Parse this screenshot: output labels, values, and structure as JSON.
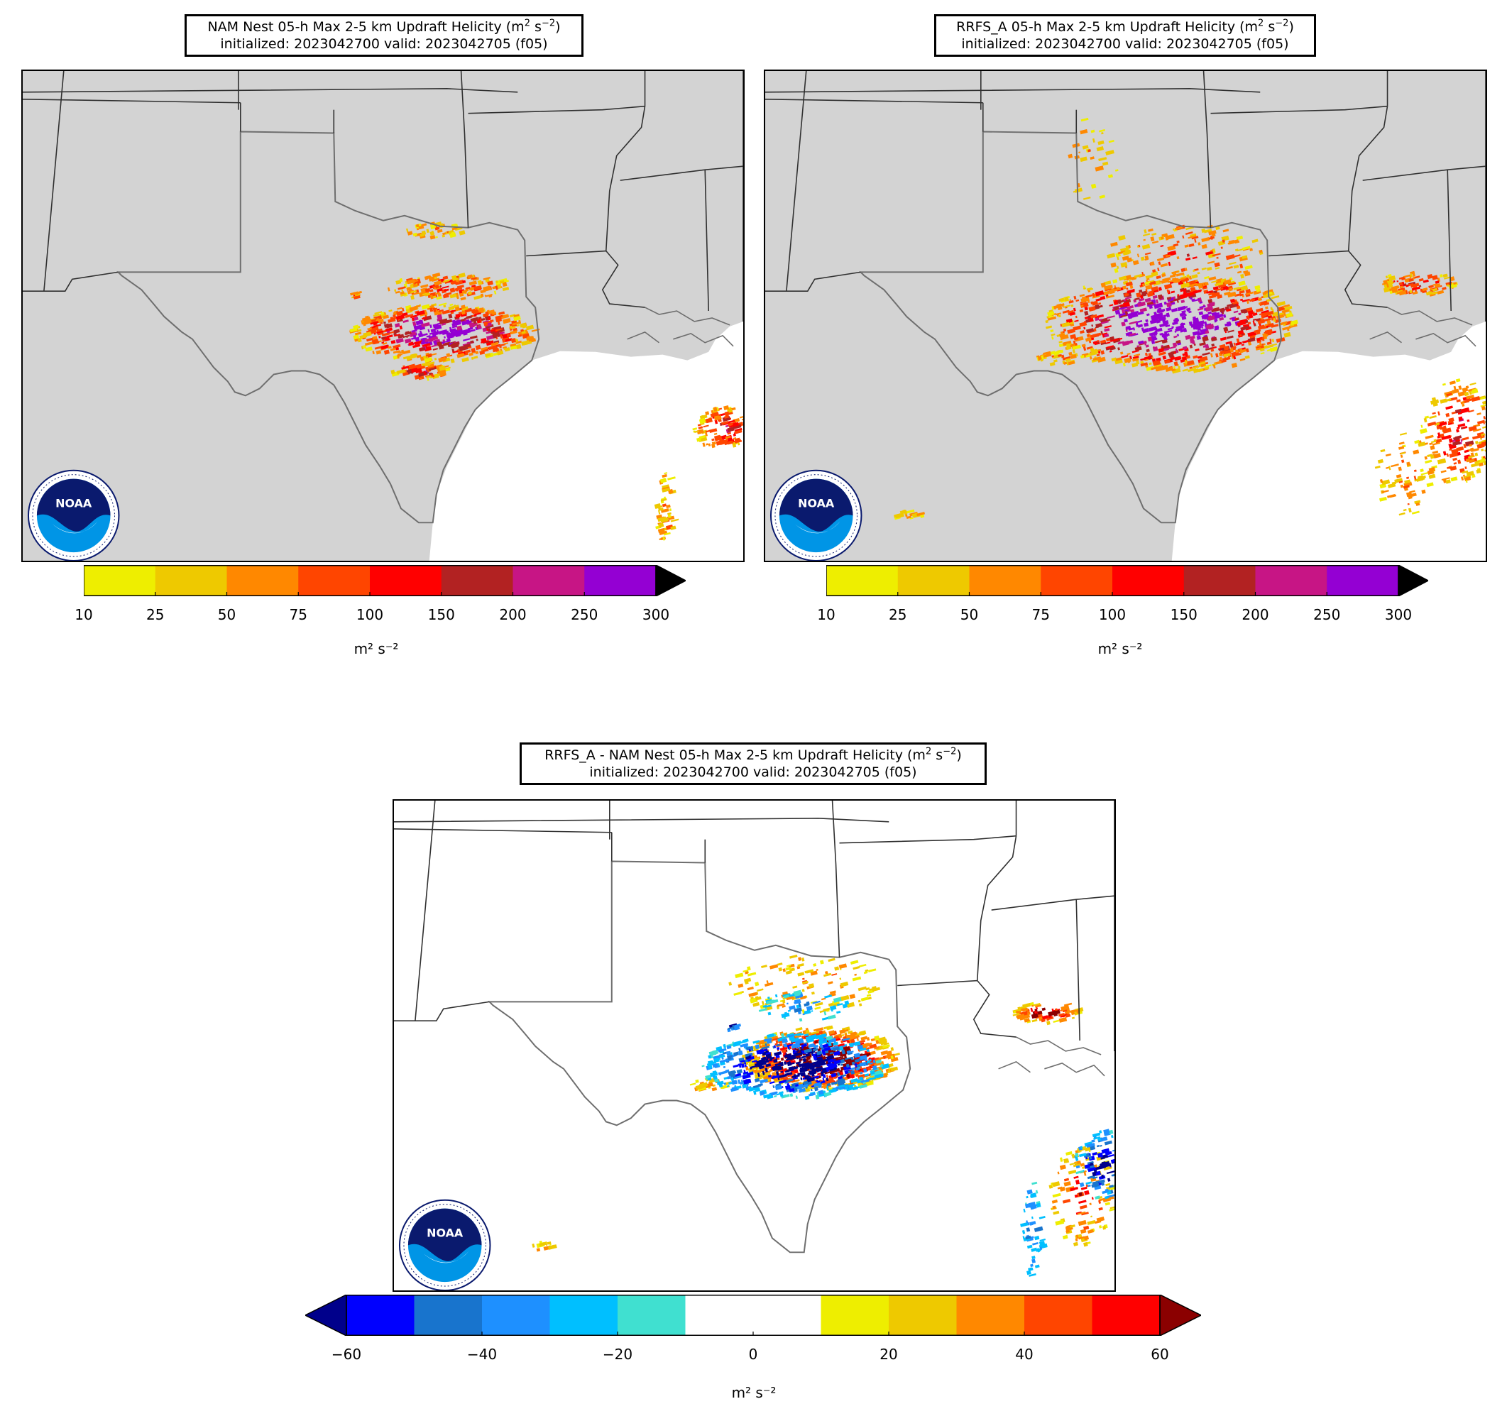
{
  "panels": [
    {
      "id": "nam",
      "title_line1": "NAM Nest 05-h Max 2-5 km Updraft Helicity",
      "title_line2": "initialized: 2023042700 valid: 2023042705 (f05)",
      "units": "m² s⁻²",
      "land_color": "#d3d3d3",
      "colorbar": {
        "levels": [
          "10",
          "25",
          "50",
          "75",
          "100",
          "150",
          "200",
          "250",
          "300"
        ],
        "colors": [
          "#eeee00",
          "#eec900",
          "#ff8800",
          "#ff4500",
          "#ff0000",
          "#b22222",
          "#c71585",
          "#9400d3"
        ],
        "extend_max_color": "#000000"
      }
    },
    {
      "id": "rrfs",
      "title_line1": "RRFS_A 05-h Max 2-5 km Updraft Helicity",
      "title_line2": "initialized: 2023042700 valid: 2023042705 (f05)",
      "units": "m² s⁻²",
      "land_color": "#d3d3d3",
      "colorbar": {
        "levels": [
          "10",
          "25",
          "50",
          "75",
          "100",
          "150",
          "200",
          "250",
          "300"
        ],
        "colors": [
          "#eeee00",
          "#eec900",
          "#ff8800",
          "#ff4500",
          "#ff0000",
          "#b22222",
          "#c71585",
          "#9400d3"
        ],
        "extend_max_color": "#000000"
      }
    },
    {
      "id": "diff",
      "title_line1": "RRFS_A - NAM Nest 05-h Max 2-5 km Updraft Helicity",
      "title_line2": "initialized: 2023042700 valid: 2023042705 (f05)",
      "units": "m² s⁻²",
      "land_color": "#ffffff",
      "colorbar": {
        "levels": [
          "−60",
          "−40",
          "−20",
          "0",
          "20",
          "40",
          "60"
        ],
        "colors": [
          "#0000ff",
          "#1874cd",
          "#1e90ff",
          "#00bfff",
          "#40e0d0",
          "#ffffff",
          "#ffffff",
          "#eeee00",
          "#eec900",
          "#ff8800",
          "#ff4500",
          "#ff0000"
        ],
        "extend_min_color": "#00008b",
        "extend_max_color": "#8b0000"
      }
    }
  ],
  "logo": {
    "text": "NOAA",
    "ring_text": "NATIONAL OCEANIC AND ATMOSPHERIC ADMINISTRATION · U.S. DEPARTMENT OF COMMERCE",
    "colors": {
      "navy": "#0a1a6e",
      "sky": "#0095e6"
    }
  }
}
